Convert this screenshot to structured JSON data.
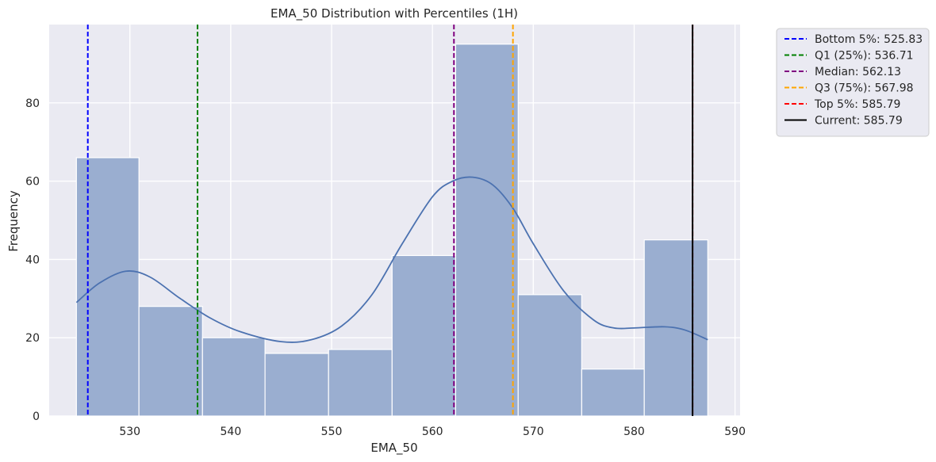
{
  "chart_data": {
    "type": "histogram",
    "title": "EMA_50 Distribution with Percentiles (1H)",
    "xlabel": "EMA_50",
    "ylabel": "Frequency",
    "xlim": [
      522.0,
      590.5
    ],
    "ylim": [
      0,
      100
    ],
    "xticks": [
      530,
      540,
      550,
      560,
      570,
      580,
      590
    ],
    "yticks": [
      0,
      20,
      40,
      60,
      80
    ],
    "grid": true,
    "legend_position": "outside-top-right",
    "bins": [
      {
        "start": 524.7,
        "end": 530.9,
        "count": 66
      },
      {
        "start": 530.9,
        "end": 537.2,
        "count": 28
      },
      {
        "start": 537.2,
        "end": 543.4,
        "count": 20
      },
      {
        "start": 543.4,
        "end": 549.7,
        "count": 16
      },
      {
        "start": 549.7,
        "end": 556.0,
        "count": 17
      },
      {
        "start": 556.0,
        "end": 562.3,
        "count": 41
      },
      {
        "start": 562.3,
        "end": 568.5,
        "count": 95
      },
      {
        "start": 568.5,
        "end": 574.8,
        "count": 31
      },
      {
        "start": 574.8,
        "end": 581.0,
        "count": 12
      },
      {
        "start": 581.0,
        "end": 587.3,
        "count": 45
      }
    ],
    "kde": {
      "x": [
        524.7,
        527,
        529.6,
        532,
        535,
        538,
        541,
        545,
        548,
        551,
        554,
        557,
        560,
        562,
        564,
        566,
        568,
        570,
        573,
        576,
        578,
        580,
        583,
        585,
        587.3
      ],
      "y": [
        29,
        34,
        37,
        35.5,
        30,
        25,
        21.5,
        19,
        19.5,
        23,
        31,
        44,
        56,
        60,
        61,
        59,
        53,
        44,
        32,
        24.5,
        22.5,
        22.5,
        22.8,
        22,
        19.5
      ]
    },
    "colors": {
      "bar_fill": "#9aaed0",
      "kde_line": "#4c72b0",
      "plot_bg": "#eaeaf2",
      "grid": "#ffffff"
    },
    "reference_lines": [
      {
        "label": "Bottom 5%: 525.83",
        "value": 525.83,
        "color": "#0000ff",
        "style": "dashed"
      },
      {
        "label": "Q1 (25%): 536.71",
        "value": 536.71,
        "color": "#008000",
        "style": "dashed"
      },
      {
        "label": "Median: 562.13",
        "value": 562.13,
        "color": "#800080",
        "style": "dashed"
      },
      {
        "label": "Q3 (75%): 567.98",
        "value": 567.98,
        "color": "#ffa500",
        "style": "dashed"
      },
      {
        "label": "Top 5%: 585.79",
        "value": 585.79,
        "color": "#ff0000",
        "style": "dashed"
      },
      {
        "label": "Current: 585.79",
        "value": 585.79,
        "color": "#000000",
        "style": "solid"
      }
    ]
  }
}
